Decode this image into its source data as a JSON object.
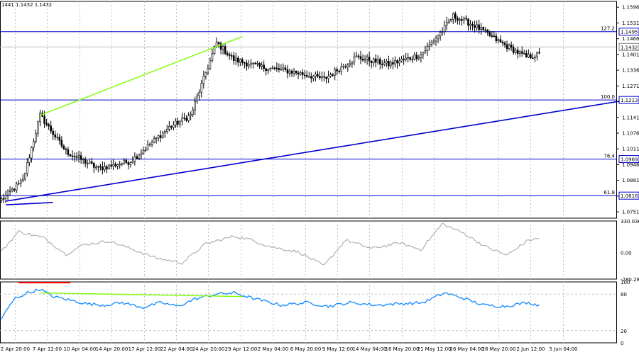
{
  "header": {
    "ohlc_text": "1441 1.1432 1.1432"
  },
  "colors": {
    "candle": "#000000",
    "background": "#ffffff",
    "level_line": "#0000cd",
    "trend_line": "#0000cd",
    "divergence": "#7cfc00",
    "oscillator": "#b0b0b0",
    "rsi": "#1e90ff",
    "marker_red": "#ff0000",
    "grid": "#c0c0c0",
    "current_price_line": "#c0c0c0",
    "marker_box": "#0000ff"
  },
  "chart_data": [
    {
      "type": "candlestick",
      "panel": "price",
      "ylim": [
        1.0725,
        1.162
      ],
      "y_ticks": [
        "1.1596",
        "1.1531",
        "1.1466",
        "1.1401",
        "1.1336",
        "1.1271",
        "1.1206",
        "1.1141",
        "1.1076",
        "1.1011",
        "1.0946",
        "1.0881",
        "1.0816",
        "1.0751"
      ],
      "x_ticks": [
        "2 Apr 20:00",
        "7 Apr 12:00",
        "10 Apr 04:00",
        "14 Apr 20:00",
        "17 Apr 12:00",
        "22 Apr 04:00",
        "24 Apr 20:00",
        "29 Apr 12:00",
        "2 May 04:00",
        "6 May 20:00",
        "9 May 12:00",
        "14 May 04:00",
        "16 May 20:00",
        "21 May 12:00",
        "26 May 04:00",
        "28 May 20:00",
        "2 Jun 12:00",
        "5 Jun 04:00"
      ],
      "close_anchors": [
        [
          0,
          1.0802
        ],
        [
          10,
          1.088
        ],
        [
          18,
          1.115
        ],
        [
          30,
          1.1
        ],
        [
          45,
          1.093
        ],
        [
          60,
          1.096
        ],
        [
          78,
          1.11
        ],
        [
          88,
          1.115
        ],
        [
          96,
          1.135
        ],
        [
          100,
          1.145
        ],
        [
          108,
          1.138
        ],
        [
          120,
          1.135
        ],
        [
          135,
          1.133
        ],
        [
          150,
          1.13
        ],
        [
          165,
          1.139
        ],
        [
          180,
          1.136
        ],
        [
          195,
          1.14
        ],
        [
          205,
          1.15
        ],
        [
          210,
          1.156
        ],
        [
          220,
          1.152
        ],
        [
          232,
          1.145
        ],
        [
          244,
          1.139
        ],
        [
          260,
          1.142
        ],
        [
          275,
          1.138
        ],
        [
          295,
          1.142
        ],
        [
          315,
          1.14
        ],
        [
          330,
          1.136
        ],
        [
          345,
          1.132
        ],
        [
          360,
          1.133
        ],
        [
          375,
          1.135
        ],
        [
          390,
          1.137
        ],
        [
          410,
          1.135
        ],
        [
          422,
          1.123
        ],
        [
          438,
          1.121
        ],
        [
          448,
          1.123
        ],
        [
          452,
          1.11
        ],
        [
          460,
          1.112
        ],
        [
          470,
          1.117
        ],
        [
          480,
          1.122
        ],
        [
          490,
          1.12
        ],
        [
          505,
          1.12
        ],
        [
          520,
          1.118
        ],
        [
          530,
          1.126
        ],
        [
          545,
          1.126
        ],
        [
          560,
          1.135
        ],
        [
          575,
          1.133
        ],
        [
          590,
          1.135
        ],
        [
          605,
          1.141
        ],
        [
          615,
          1.141
        ],
        [
          628,
          1.136
        ],
        [
          640,
          1.132
        ],
        [
          652,
          1.125
        ],
        [
          660,
          1.131
        ],
        [
          668,
          1.136
        ],
        [
          680,
          1.142
        ],
        [
          695,
          1.146
        ],
        [
          710,
          1.14
        ],
        [
          722,
          1.138
        ],
        [
          735,
          1.144
        ],
        [
          745,
          1.146
        ],
        [
          752,
          1.1432
        ]
      ],
      "horizontal_levels": [
        {
          "value": 1.1495,
          "label": "127.2",
          "price_tag": "1.1495"
        },
        {
          "value": 1.1213,
          "label": "100.0",
          "price_tag": "1.1213"
        },
        {
          "value": 1.0969,
          "label": "76.4",
          "price_tag": "1.0969"
        },
        {
          "value": 1.0818,
          "label": "61.8",
          "price_tag": "1.0818"
        }
      ],
      "current_price": {
        "value": 1.1432,
        "price_tag": "1.1432"
      },
      "trend_lines": [
        {
          "from": [
            2,
            1.0795
          ],
          "to": [
            420,
            1.14
          ],
          "color": "trend_line"
        },
        {
          "from": [
            458,
            1.1365
          ],
          "to": [
            762,
            1.1525
          ],
          "color": "trend_line"
        },
        {
          "from": [
            458,
            1.1068
          ],
          "to": [
            762,
            1.1275
          ],
          "color": "trend_line"
        },
        {
          "from": [
            2,
            1.078
          ],
          "to": [
            24,
            1.079
          ],
          "color": "trend_line"
        }
      ],
      "divergence_lines": [
        {
          "from": [
            18,
            1.115
          ],
          "to": [
            112,
            1.1475
          ]
        },
        {
          "from": [
            438,
            1.129
          ],
          "to": [
            485,
            1.127
          ]
        },
        {
          "from": [
            530,
            1.1285
          ],
          "to": [
            565,
            1.137
          ]
        }
      ],
      "markers": [
        {
          "type": "square",
          "x": 742,
          "y": 1.149
        },
        {
          "type": "square",
          "x": 654,
          "y": 1.121
        }
      ]
    },
    {
      "type": "line",
      "panel": "oscillator",
      "ylim": [
        -280.284,
        330.0361
      ],
      "y_ticks": [
        "330.0361",
        "0.00",
        "-280.284"
      ],
      "divergence_lines": [
        {
          "from": [
            438,
            -25.0
          ],
          "to": [
            485,
            110.0
          ]
        },
        {
          "from": [
            530,
            230.0
          ],
          "to": [
            565,
            190.0
          ]
        }
      ],
      "series_anchors": [
        [
          0,
          10
        ],
        [
          8,
          220
        ],
        [
          20,
          150
        ],
        [
          30,
          -20
        ],
        [
          38,
          80
        ],
        [
          50,
          120
        ],
        [
          60,
          40
        ],
        [
          72,
          -60
        ],
        [
          84,
          -110
        ],
        [
          95,
          90
        ],
        [
          108,
          170
        ],
        [
          115,
          140
        ],
        [
          125,
          60
        ],
        [
          138,
          5
        ],
        [
          150,
          -140
        ],
        [
          160,
          130
        ],
        [
          172,
          40
        ],
        [
          185,
          100
        ],
        [
          195,
          30
        ],
        [
          205,
          300
        ],
        [
          215,
          200
        ],
        [
          225,
          60
        ],
        [
          235,
          -30
        ],
        [
          245,
          130
        ],
        [
          255,
          160
        ],
        [
          268,
          -90
        ],
        [
          278,
          -40
        ],
        [
          290,
          130
        ],
        [
          300,
          50
        ],
        [
          312,
          -60
        ],
        [
          322,
          110
        ],
        [
          332,
          -210
        ],
        [
          345,
          -80
        ],
        [
          355,
          60
        ],
        [
          368,
          40
        ],
        [
          380,
          20
        ],
        [
          392,
          -10
        ],
        [
          405,
          90
        ],
        [
          418,
          -40
        ],
        [
          430,
          -150
        ],
        [
          440,
          -200
        ],
        [
          448,
          -210
        ],
        [
          458,
          -100
        ],
        [
          470,
          -60
        ],
        [
          482,
          100
        ],
        [
          492,
          -40
        ],
        [
          502,
          40
        ],
        [
          510,
          -150
        ],
        [
          518,
          -210
        ],
        [
          530,
          260
        ],
        [
          540,
          170
        ],
        [
          552,
          130
        ],
        [
          565,
          160
        ],
        [
          575,
          80
        ],
        [
          585,
          -20
        ],
        [
          598,
          180
        ],
        [
          608,
          150
        ],
        [
          620,
          20
        ],
        [
          630,
          -120
        ],
        [
          640,
          -110
        ],
        [
          652,
          -170
        ],
        [
          660,
          60
        ],
        [
          670,
          170
        ],
        [
          680,
          80
        ],
        [
          690,
          -50
        ],
        [
          702,
          70
        ],
        [
          712,
          150
        ],
        [
          724,
          20
        ],
        [
          735,
          80
        ],
        [
          745,
          90
        ],
        [
          752,
          50
        ]
      ]
    },
    {
      "type": "line",
      "panel": "rsi",
      "ylim": [
        0,
        100
      ],
      "y_ticks": [
        "100",
        "80",
        "20",
        "0"
      ],
      "reference_lines": [
        80,
        20
      ],
      "divergence_lines": [
        {
          "from": [
            18,
            82.0
          ],
          "to": [
            112,
            76.0
          ]
        }
      ],
      "series_anchors": [
        [
          0,
          40
        ],
        [
          6,
          72
        ],
        [
          12,
          82
        ],
        [
          18,
          88
        ],
        [
          24,
          76
        ],
        [
          32,
          70
        ],
        [
          40,
          64
        ],
        [
          48,
          62
        ],
        [
          56,
          66
        ],
        [
          66,
          58
        ],
        [
          74,
          66
        ],
        [
          82,
          60
        ],
        [
          90,
          72
        ],
        [
          100,
          80
        ],
        [
          108,
          82
        ],
        [
          118,
          72
        ],
        [
          130,
          62
        ],
        [
          142,
          66
        ],
        [
          152,
          60
        ],
        [
          162,
          66
        ],
        [
          174,
          62
        ],
        [
          184,
          64
        ],
        [
          196,
          66
        ],
        [
          206,
          82
        ],
        [
          214,
          74
        ],
        [
          224,
          62
        ],
        [
          234,
          60
        ],
        [
          244,
          66
        ],
        [
          256,
          58
        ],
        [
          268,
          64
        ],
        [
          280,
          58
        ],
        [
          292,
          60
        ],
        [
          304,
          64
        ],
        [
          314,
          58
        ],
        [
          326,
          62
        ],
        [
          338,
          56
        ],
        [
          350,
          60
        ],
        [
          362,
          58
        ],
        [
          374,
          62
        ],
        [
          386,
          58
        ],
        [
          398,
          60
        ],
        [
          410,
          64
        ],
        [
          420,
          62
        ],
        [
          430,
          50
        ],
        [
          440,
          46
        ],
        [
          448,
          30
        ],
        [
          456,
          42
        ],
        [
          466,
          50
        ],
        [
          476,
          56
        ],
        [
          486,
          58
        ],
        [
          496,
          56
        ],
        [
          506,
          52
        ],
        [
          516,
          60
        ],
        [
          526,
          60
        ],
        [
          536,
          64
        ],
        [
          546,
          62
        ],
        [
          556,
          68
        ],
        [
          566,
          64
        ],
        [
          576,
          66
        ],
        [
          586,
          68
        ],
        [
          596,
          64
        ],
        [
          606,
          74
        ],
        [
          616,
          70
        ],
        [
          626,
          58
        ],
        [
          636,
          56
        ],
        [
          646,
          48
        ],
        [
          654,
          52
        ],
        [
          662,
          62
        ],
        [
          672,
          64
        ],
        [
          682,
          60
        ],
        [
          692,
          64
        ],
        [
          702,
          70
        ],
        [
          712,
          60
        ],
        [
          722,
          62
        ],
        [
          732,
          66
        ],
        [
          742,
          70
        ],
        [
          752,
          66
        ]
      ],
      "marker_line": {
        "from": [
          8,
          100
        ],
        "to": [
          32,
          100
        ]
      }
    }
  ]
}
